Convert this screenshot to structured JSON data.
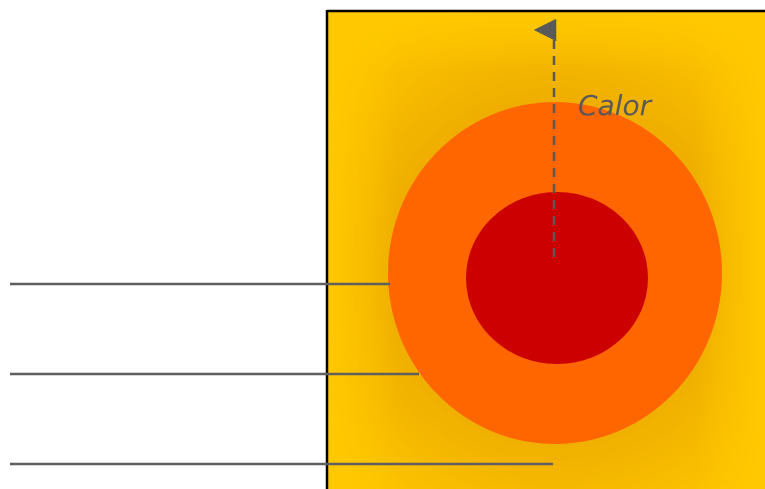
{
  "diagram": {
    "heat_label": "Calor",
    "colors": {
      "outer_medium": "#FFC800",
      "outer_shadow": "#E8A200",
      "middle_layer": "#FF6600",
      "core": "#CC0000",
      "leader_lines": "#5F5F5F",
      "heat_arrow": "#595959",
      "frame": "#000000"
    }
  }
}
